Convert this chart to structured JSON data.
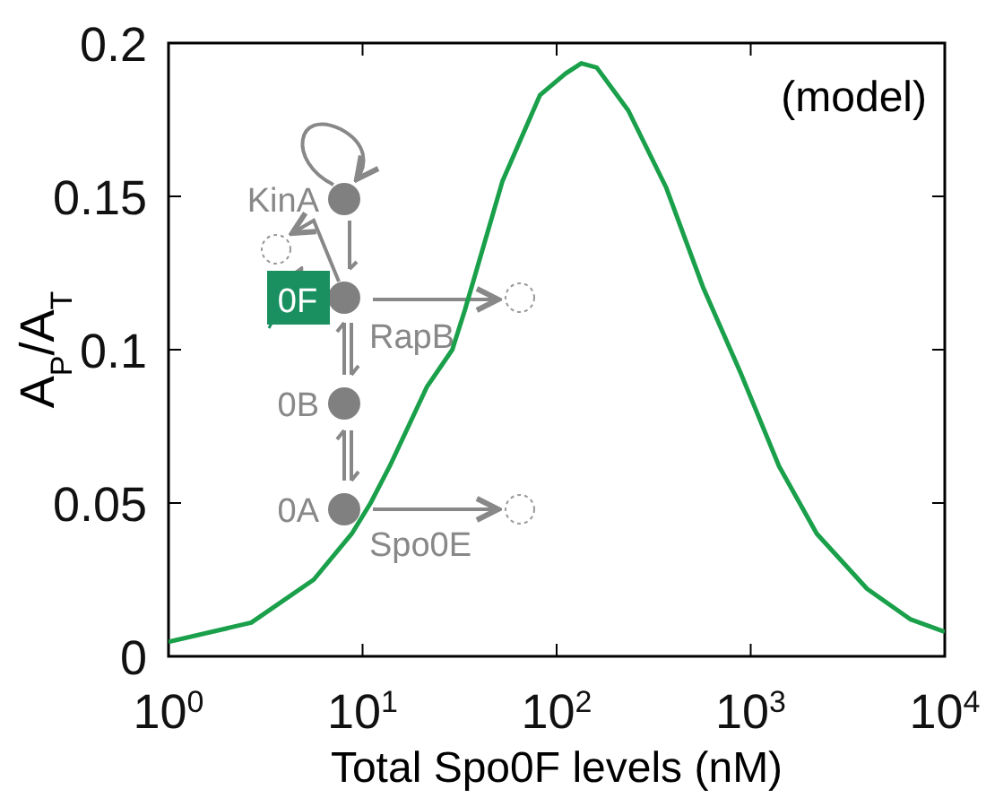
{
  "chart_data": {
    "type": "line",
    "xlabel": "Total Spo0F levels (nM)",
    "ylabel": "A$_{P}$/A$_{T}$",
    "annotations": [
      "(model)",
      "KinA",
      "0F",
      "RapB",
      "0B",
      "0A",
      "Spo0E"
    ],
    "x": [
      1,
      2.67,
      5.6,
      8.8,
      11,
      13.8,
      21.5,
      29,
      33.7,
      52.6,
      82,
      111,
      134,
      161,
      234,
      366,
      571,
      893,
      1400,
      2190,
      3980,
      6680,
      10000
    ],
    "series": [
      {
        "color": "#1aa04a",
        "values": [
          0.0047,
          0.011,
          0.025,
          0.04,
          0.05,
          0.062,
          0.088,
          0.1,
          0.113,
          0.155,
          0.183,
          0.19,
          0.1934,
          0.192,
          0.178,
          0.153,
          0.12,
          0.092,
          0.062,
          0.04,
          0.022,
          0.012,
          0.008
        ]
      }
    ],
    "log": "x",
    "xlim": [
      1,
      10000
    ],
    "xticks": [
      {
        "value": 1,
        "label": "10$^{0}$"
      },
      {
        "value": 10,
        "label": "10$^{1}$"
      },
      {
        "value": 100,
        "label": "10$^{2}$"
      },
      {
        "value": 1000,
        "label": "10$^{3}$"
      },
      {
        "value": 10000,
        "label": "10$^{4}$"
      }
    ],
    "ylim": [
      0,
      0.2
    ],
    "yticks": [
      0,
      0.05,
      0.1,
      0.15,
      0.2
    ],
    "marker": "none",
    "line_style": "solid"
  }
}
